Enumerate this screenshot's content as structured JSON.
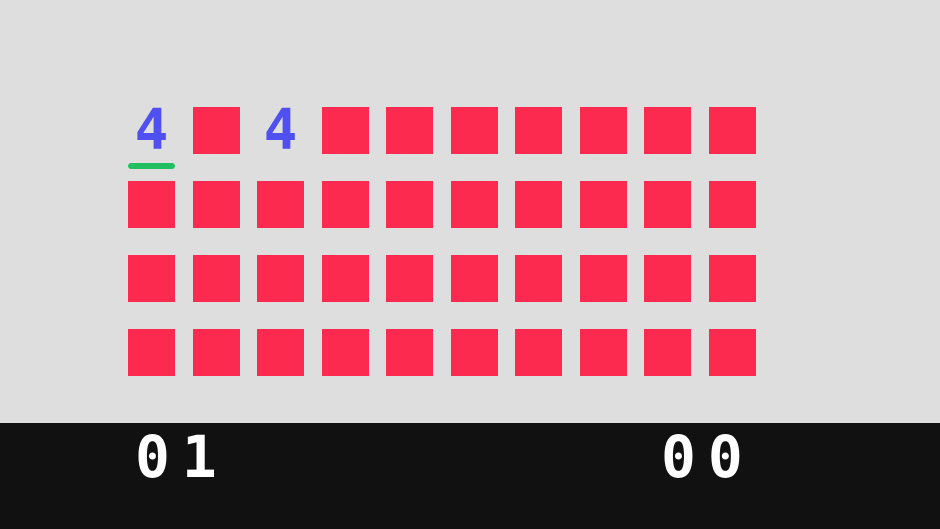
{
  "colors": {
    "background": "#dedede",
    "card_back": "#fb2a4e",
    "card_face": "#5050f0",
    "cursor": "#22c060",
    "score_bar": "#111111",
    "score_text": "#ffffff"
  },
  "board": {
    "rows": 4,
    "cols": 10,
    "cursor": {
      "row": 0,
      "col": 0
    },
    "cells": [
      [
        {
          "state": "revealed",
          "value": "4"
        },
        {
          "state": "hidden"
        },
        {
          "state": "revealed",
          "value": "4"
        },
        {
          "state": "hidden"
        },
        {
          "state": "hidden"
        },
        {
          "state": "hidden"
        },
        {
          "state": "hidden"
        },
        {
          "state": "hidden"
        },
        {
          "state": "hidden"
        },
        {
          "state": "hidden"
        }
      ],
      [
        {
          "state": "hidden"
        },
        {
          "state": "hidden"
        },
        {
          "state": "hidden"
        },
        {
          "state": "hidden"
        },
        {
          "state": "hidden"
        },
        {
          "state": "hidden"
        },
        {
          "state": "hidden"
        },
        {
          "state": "hidden"
        },
        {
          "state": "hidden"
        },
        {
          "state": "hidden"
        }
      ],
      [
        {
          "state": "hidden"
        },
        {
          "state": "hidden"
        },
        {
          "state": "hidden"
        },
        {
          "state": "hidden"
        },
        {
          "state": "hidden"
        },
        {
          "state": "hidden"
        },
        {
          "state": "hidden"
        },
        {
          "state": "hidden"
        },
        {
          "state": "hidden"
        },
        {
          "state": "hidden"
        }
      ],
      [
        {
          "state": "hidden"
        },
        {
          "state": "hidden"
        },
        {
          "state": "hidden"
        },
        {
          "state": "hidden"
        },
        {
          "state": "hidden"
        },
        {
          "state": "hidden"
        },
        {
          "state": "hidden"
        },
        {
          "state": "hidden"
        },
        {
          "state": "hidden"
        },
        {
          "state": "hidden"
        }
      ]
    ]
  },
  "scores": {
    "left": "01",
    "right": "00"
  }
}
